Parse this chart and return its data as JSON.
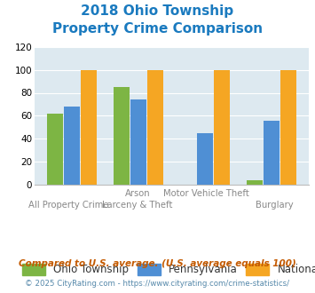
{
  "title_line1": "2018 Ohio Township",
  "title_line2": "Property Crime Comparison",
  "title_color": "#1a7abf",
  "xlabel_top": [
    "",
    "Arson",
    "Motor Vehicle Theft",
    ""
  ],
  "xlabel_bot": [
    "All Property Crime",
    "Larceny & Theft",
    "",
    "Burglary"
  ],
  "ohio_values": [
    62,
    85,
    0,
    4
  ],
  "pa_values": [
    68,
    74,
    45,
    56
  ],
  "national_values": [
    100,
    100,
    100,
    100
  ],
  "ohio_color": "#7db544",
  "pa_color": "#4f8fd4",
  "national_color": "#f5a623",
  "ylim": [
    0,
    120
  ],
  "yticks": [
    0,
    20,
    40,
    60,
    80,
    100,
    120
  ],
  "plot_bg": "#dde9f0",
  "legend_labels": [
    "Ohio Township",
    "Pennsylvania",
    "National"
  ],
  "footnote1": "Compared to U.S. average. (U.S. average equals 100)",
  "footnote2": "© 2025 CityRating.com - https://www.cityrating.com/crime-statistics/",
  "footnote1_color": "#c45a00",
  "footnote2_color": "#5588aa"
}
